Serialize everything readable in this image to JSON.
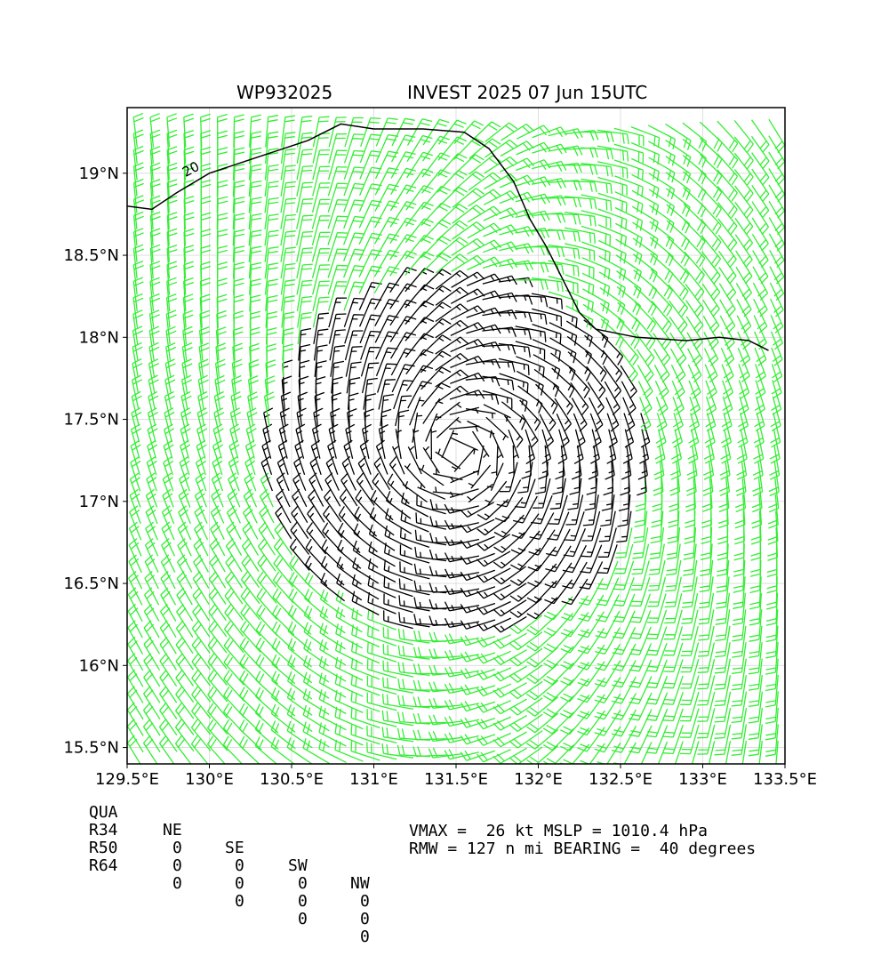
{
  "chart_data": {
    "type": "wind_barb_map",
    "title_left": "WP932025",
    "title_right": "INVEST 2025 07 Jun 15UTC",
    "xlim": [
      129.5,
      133.5
    ],
    "ylim": [
      15.4,
      19.4
    ],
    "x_ticks": [
      129.5,
      130.0,
      130.5,
      131.0,
      131.5,
      132.0,
      132.5,
      133.0,
      133.5
    ],
    "x_tick_labels": [
      "129.5°E",
      "130°E",
      "130.5°E",
      "131°E",
      "131.5°E",
      "132°E",
      "132.5°E",
      "133°E",
      "133.5°E"
    ],
    "y_ticks": [
      15.5,
      16.0,
      16.5,
      17.0,
      17.5,
      18.0,
      18.5,
      19.0
    ],
    "y_tick_labels": [
      "15.5°N",
      "16°N",
      "16.5°N",
      "17°N",
      "17.5°N",
      "18°N",
      "18.5°N",
      "19°N"
    ],
    "grid": true,
    "center": {
      "lon": 131.5,
      "lat": 17.3
    },
    "barb_threshold_kt": 20,
    "colors": {
      "below_threshold": "#000000",
      "above_threshold": "#33ee33"
    },
    "contour": {
      "level_label": "20",
      "label_position": [
        129.9,
        19.0
      ],
      "paths": [
        [
          [
            129.5,
            18.8
          ],
          [
            129.65,
            18.78
          ],
          [
            129.8,
            18.88
          ],
          [
            130.0,
            19.0
          ],
          [
            130.3,
            19.1
          ],
          [
            130.6,
            19.2
          ],
          [
            130.8,
            19.3
          ],
          [
            131.0,
            19.27
          ],
          [
            131.3,
            19.27
          ],
          [
            131.55,
            19.25
          ],
          [
            131.7,
            19.15
          ],
          [
            131.85,
            18.95
          ],
          [
            131.95,
            18.72
          ],
          [
            132.05,
            18.55
          ],
          [
            132.15,
            18.35
          ],
          [
            132.25,
            18.15
          ],
          [
            132.35,
            18.05
          ],
          [
            132.6,
            18.0
          ],
          [
            132.9,
            17.98
          ],
          [
            133.1,
            18.0
          ],
          [
            133.28,
            17.98
          ],
          [
            133.4,
            17.92
          ]
        ]
      ]
    }
  },
  "radii_table": {
    "headers": [
      "QUA",
      "NE",
      "SE",
      "SW",
      "NW"
    ],
    "rows": [
      {
        "label": "R34",
        "values": [
          "0",
          "0",
          "0",
          "0"
        ]
      },
      {
        "label": "R50",
        "values": [
          "0",
          "0",
          "0",
          "0"
        ]
      },
      {
        "label": "R64",
        "values": [
          "0",
          "0",
          "0",
          "0"
        ]
      }
    ]
  },
  "storm_info": {
    "line1": "VMAX =  26 kt MSLP = 1010.4 hPa",
    "line2": "RMW = 127 n mi BEARING =  40 degrees"
  }
}
